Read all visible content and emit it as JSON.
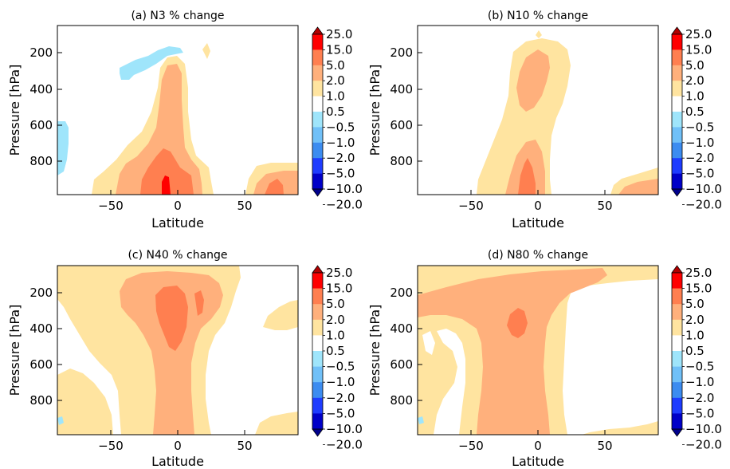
{
  "figure": {
    "colorbar_levels": [
      "25.0",
      "15.0",
      "5.0",
      "2.0",
      "1.0",
      "0.5",
      "−0.5",
      "−1.0",
      "−2.0",
      "−5.0",
      "−10.0",
      "−20.0"
    ],
    "colorbar_colors": [
      "#b20000",
      "#ff0000",
      "#ff7f50",
      "#ffb07c",
      "#ffe4a0",
      "#ffffff",
      "#9fe5fb",
      "#70c0f8",
      "#3c8cf0",
      "#1e3cff",
      "#0000c8",
      "#00008c"
    ]
  },
  "chart_data": [
    {
      "type": "contourf",
      "title": "(a) N3 % change",
      "xlabel": "Latitude",
      "ylabel": "Pressure [hPa]",
      "xlim": [
        -90,
        90
      ],
      "ylim": [
        1000,
        60
      ],
      "y_inverted": true,
      "xticks": [
        "−50",
        "0",
        "50"
      ],
      "yticks": [
        "200",
        "400",
        "600",
        "800"
      ],
      "regions": [
        {
          "level": "1.0 to 2.0",
          "color": "#ffe4a0",
          "lat_range": [
            -62,
            20
          ],
          "p_range": [
            240,
            1000
          ]
        },
        {
          "level": "2.0 to 5.0",
          "color": "#ffb07c",
          "lat_range": [
            -48,
            12
          ],
          "p_range": [
            290,
            1000
          ]
        },
        {
          "level": "5.0 to 15.0",
          "color": "#ff7f50",
          "lat_range": [
            -30,
            8
          ],
          "p_range": [
            720,
            1000
          ]
        },
        {
          "level": "15.0 to 25.0",
          "color": "#ff0000",
          "lat_range": [
            -14,
            -8
          ],
          "p_range": [
            870,
            1000
          ]
        },
        {
          "level": "-1.0 to -0.5",
          "color": "#9fe5fb",
          "lat_range": [
            -45,
            -15
          ],
          "p_range": [
            150,
            310
          ]
        },
        {
          "level": "-1.0 to -0.5",
          "color": "#9fe5fb",
          "lat_range": [
            -90,
            -82
          ],
          "p_range": [
            580,
            880
          ]
        },
        {
          "level": "1.0 to 2.0",
          "color": "#ffe4a0",
          "lat_range": [
            52,
            90
          ],
          "p_range": [
            820,
            1000
          ]
        },
        {
          "level": "2.0 to 5.0",
          "color": "#ffb07c",
          "lat_range": [
            55,
            90
          ],
          "p_range": [
            860,
            1000
          ]
        }
      ]
    },
    {
      "type": "contourf",
      "title": "(b) N10 % change",
      "xlabel": "Latitude",
      "ylabel": "Pressure [hPa]",
      "xlim": [
        -90,
        90
      ],
      "ylim": [
        1000,
        60
      ],
      "y_inverted": true,
      "xticks": [
        "−50",
        "0",
        "50"
      ],
      "yticks": [
        "200",
        "400",
        "600",
        "800"
      ],
      "regions": [
        {
          "level": "1.0 to 2.0",
          "color": "#ffe4a0",
          "lat_range": [
            -50,
            20
          ],
          "p_range": [
            100,
            1000
          ]
        },
        {
          "level": "2.0 to 5.0",
          "color": "#ffb07c",
          "lat_range": [
            -30,
            5
          ],
          "p_range": [
            150,
            1000
          ]
        },
        {
          "level": "5.0 to 15.0",
          "color": "#ff7f50",
          "lat_range": [
            -16,
            -4
          ],
          "p_range": [
            780,
            1000
          ]
        },
        {
          "level": "1.0 to 2.0",
          "color": "#ffe4a0",
          "lat_range": [
            55,
            90
          ],
          "p_range": [
            820,
            1000
          ]
        },
        {
          "level": "2.0 to 5.0",
          "color": "#ffb07c",
          "lat_range": [
            62,
            90
          ],
          "p_range": [
            880,
            1000
          ]
        }
      ]
    },
    {
      "type": "contourf",
      "title": "(c) N40 % change",
      "xlabel": "Latitude",
      "ylabel": "Pressure [hPa]",
      "xlim": [
        -90,
        90
      ],
      "ylim": [
        1000,
        60
      ],
      "y_inverted": true,
      "xticks": [
        "−50",
        "0",
        "50"
      ],
      "yticks": [
        "200",
        "400",
        "600",
        "800"
      ],
      "regions": [
        {
          "level": "1.0 to 2.0",
          "color": "#ffe4a0",
          "lat_range": [
            -90,
            50
          ],
          "p_range": [
            60,
            1000
          ]
        },
        {
          "level": "2.0 to 5.0",
          "color": "#ffb07c",
          "lat_range": [
            -45,
            30
          ],
          "p_range": [
            100,
            1000
          ]
        },
        {
          "level": "5.0 to 15.0",
          "color": "#ff7f50",
          "lat_range": [
            -20,
            25
          ],
          "p_range": [
            150,
            450
          ]
        },
        {
          "level": "1.0 to 2.0",
          "color": "#ffe4a0",
          "lat_range": [
            55,
            90
          ],
          "p_range": [
            150,
            400
          ]
        },
        {
          "level": "1.0 to 2.0",
          "color": "#ffe4a0",
          "lat_range": [
            45,
            90
          ],
          "p_range": [
            870,
            1000
          ]
        }
      ]
    },
    {
      "type": "contourf",
      "title": "(d) N80 % change",
      "xlabel": "Latitude",
      "ylabel": "Pressure [hPa]",
      "xlim": [
        -90,
        90
      ],
      "ylim": [
        1000,
        60
      ],
      "y_inverted": true,
      "xticks": [
        "−50",
        "0",
        "50"
      ],
      "yticks": [
        "200",
        "400",
        "600",
        "800"
      ],
      "regions": [
        {
          "level": "1.0 to 2.0",
          "color": "#ffe4a0",
          "lat_range": [
            -90,
            90
          ],
          "p_range": [
            60,
            1000
          ]
        },
        {
          "level": "2.0 to 5.0",
          "color": "#ffb07c",
          "lat_range": [
            -90,
            40
          ],
          "p_range": [
            60,
            1000
          ]
        },
        {
          "level": "5.0 to 15.0",
          "color": "#ff7f50",
          "lat_range": [
            -25,
            -10
          ],
          "p_range": [
            280,
            470
          ]
        }
      ]
    }
  ]
}
